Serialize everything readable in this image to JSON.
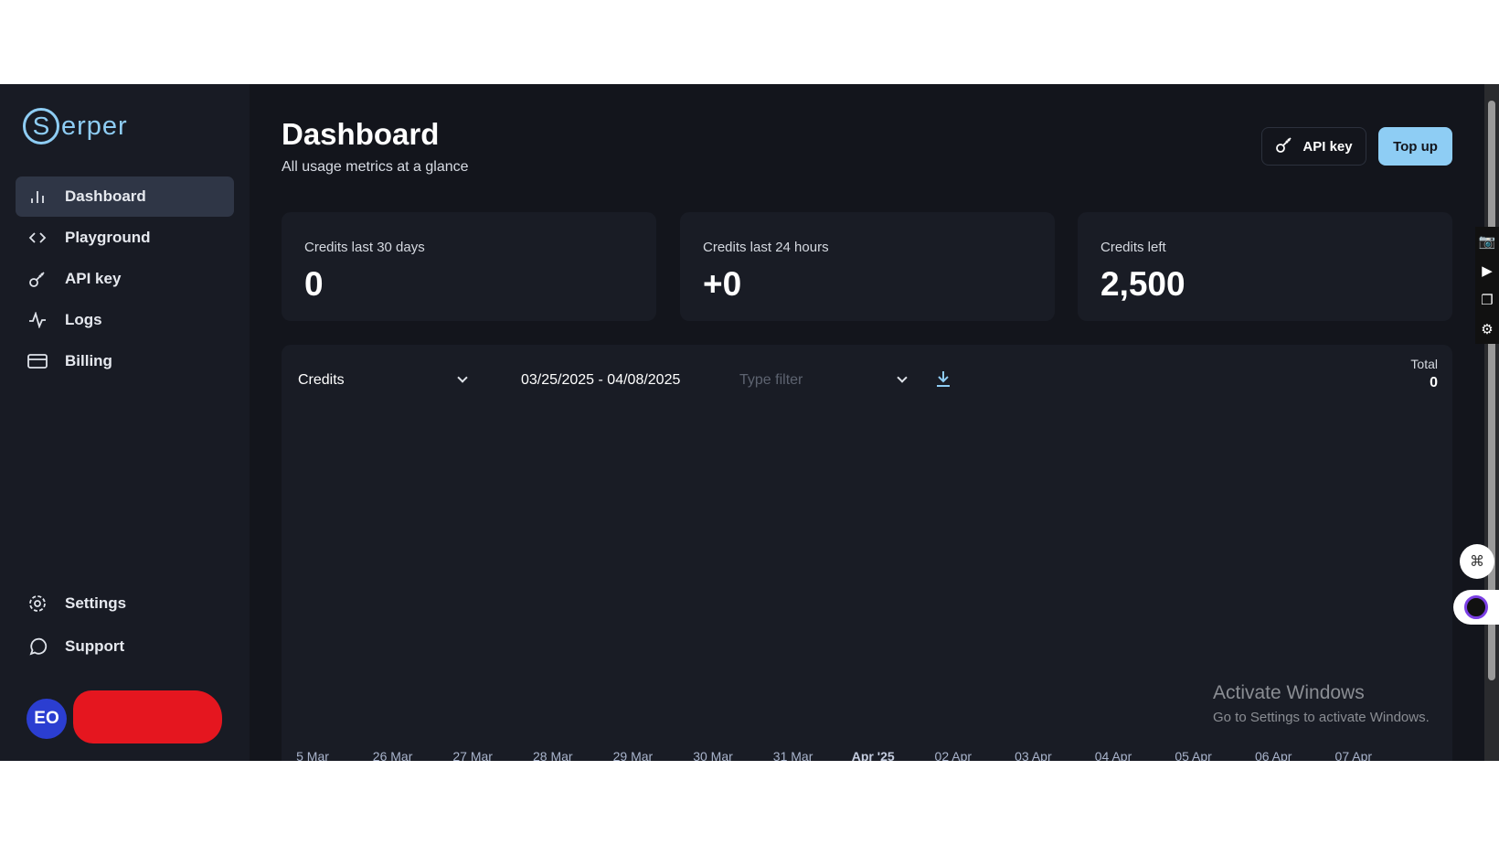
{
  "brand": {
    "logo_letter": "S",
    "logo_rest": "erper",
    "accent": "#8ecdf4"
  },
  "sidebar": {
    "items": [
      {
        "label": "Dashboard",
        "icon": "bar-chart-icon",
        "active": true
      },
      {
        "label": "Playground",
        "icon": "code-icon"
      },
      {
        "label": "API key",
        "icon": "key-icon"
      },
      {
        "label": "Logs",
        "icon": "activity-icon"
      },
      {
        "label": "Billing",
        "icon": "credit-card-icon"
      }
    ],
    "bottom": [
      {
        "label": "Settings",
        "icon": "gear-icon"
      },
      {
        "label": "Support",
        "icon": "chat-bubble-icon"
      }
    ],
    "user": {
      "initials": "EO"
    }
  },
  "header": {
    "title": "Dashboard",
    "subtitle": "All usage metrics at a glance",
    "api_key_label": "API key",
    "top_up_label": "Top up"
  },
  "cards": [
    {
      "label": "Credits last 30 days",
      "value": "0"
    },
    {
      "label": "Credits last 24 hours",
      "value": "+0"
    },
    {
      "label": "Credits left",
      "value": "2,500"
    }
  ],
  "chart_panel": {
    "metric_select": "Credits",
    "date_range": "03/25/2025 - 04/08/2025",
    "type_filter_placeholder": "Type filter",
    "total_label": "Total",
    "total_value": "0",
    "x_ticks": [
      "5 Mar",
      "26 Mar",
      "27 Mar",
      "28 Mar",
      "29 Mar",
      "30 Mar",
      "31 Mar",
      "Apr '25",
      "02 Apr",
      "03 Apr",
      "04 Apr",
      "05 Apr",
      "06 Apr",
      "07 Apr"
    ]
  },
  "watermark": {
    "line1": "Activate Windows",
    "line2": "Go to Settings to activate Windows."
  }
}
